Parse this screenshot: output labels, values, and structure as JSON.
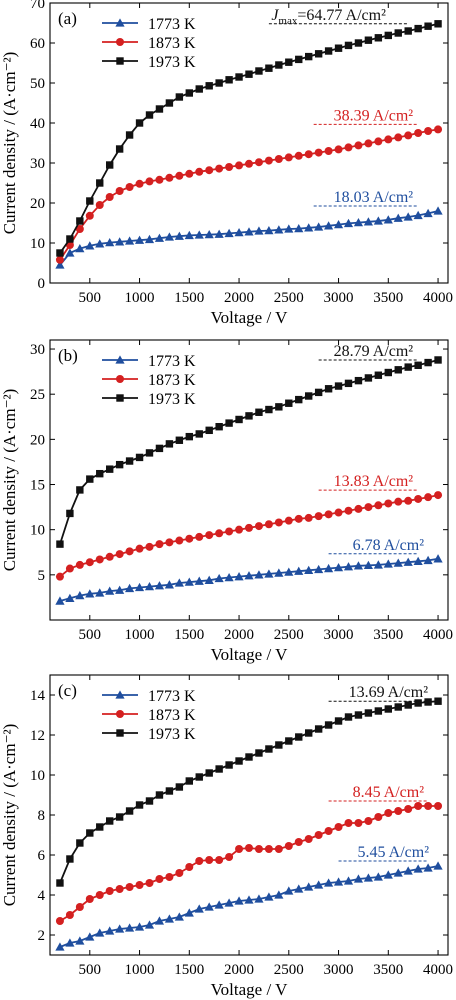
{
  "chart_data": [
    {
      "type": "line",
      "panel_label": "(a)",
      "xlabel": "Voltage / V",
      "ylabel": "Current density / (A·cm⁻²)",
      "xlim": [
        100,
        4100
      ],
      "ylim": [
        0,
        70
      ],
      "xticks": [
        500,
        1000,
        1500,
        2000,
        2500,
        3000,
        3500,
        4000
      ],
      "yticks": [
        0,
        10,
        20,
        30,
        40,
        50,
        60,
        70
      ],
      "legend_position": "top-left",
      "x": [
        200,
        300,
        400,
        500,
        600,
        700,
        800,
        900,
        1000,
        1100,
        1200,
        1300,
        1400,
        1500,
        1600,
        1700,
        1800,
        1900,
        2000,
        2100,
        2200,
        2300,
        2400,
        2500,
        2600,
        2700,
        2800,
        2900,
        3000,
        3100,
        3200,
        3300,
        3400,
        3500,
        3600,
        3700,
        3800,
        3900,
        4000
      ],
      "series": [
        {
          "name": "1773 K",
          "color": "#1f4e9e",
          "marker": "triangle",
          "values": [
            4.5,
            7.5,
            8.6,
            9.3,
            9.8,
            10.1,
            10.3,
            10.5,
            10.7,
            10.9,
            11.2,
            11.5,
            11.7,
            11.9,
            12.0,
            12.1,
            12.2,
            12.4,
            12.6,
            12.8,
            13.0,
            13.1,
            13.3,
            13.5,
            13.6,
            13.8,
            14.0,
            14.3,
            14.6,
            14.9,
            15.1,
            15.3,
            15.5,
            15.8,
            16.2,
            16.5,
            16.9,
            17.4,
            18.0
          ]
        },
        {
          "name": "1873 K",
          "color": "#d42020",
          "marker": "circle",
          "values": [
            5.8,
            9.5,
            13.5,
            16.8,
            19.5,
            21.5,
            23.0,
            24.0,
            24.8,
            25.4,
            25.8,
            26.3,
            26.8,
            27.3,
            27.8,
            28.2,
            28.6,
            29.0,
            29.4,
            29.8,
            30.2,
            30.6,
            31.0,
            31.4,
            31.8,
            32.2,
            32.6,
            33.0,
            33.4,
            33.9,
            34.4,
            34.9,
            35.4,
            35.9,
            36.4,
            36.9,
            37.5,
            38.0,
            38.4
          ]
        },
        {
          "name": "1973 K",
          "color": "#111111",
          "marker": "square",
          "values": [
            7.5,
            11.0,
            15.5,
            20.5,
            25.0,
            29.5,
            33.5,
            37.0,
            40.0,
            42.0,
            43.5,
            45.0,
            46.5,
            47.5,
            48.5,
            49.3,
            50.0,
            50.8,
            51.5,
            52.2,
            53.0,
            53.7,
            54.5,
            55.2,
            55.9,
            56.6,
            57.3,
            58.0,
            58.7,
            59.4,
            60.0,
            60.7,
            61.3,
            61.9,
            62.5,
            63.0,
            63.6,
            64.2,
            64.8
          ]
        }
      ],
      "annotations": [
        {
          "text_main": "J",
          "text_sub": "max",
          "text_rest": "=64.77 A/cm²",
          "color": "#111111",
          "anchor_x": 2900,
          "anchor_y": 64.8,
          "line_from": 2300,
          "line_to": 3700
        },
        {
          "text_main": "38.39 A/cm²",
          "text_sub": "",
          "text_rest": "",
          "color": "#d42020",
          "anchor_x": 3350,
          "anchor_y": 38.4,
          "line_from": 2750,
          "line_to": 3800
        },
        {
          "text_main": "18.03 A/cm²",
          "text_sub": "",
          "text_rest": "",
          "color": "#1f4e9e",
          "anchor_x": 3350,
          "anchor_y": 18.0,
          "line_from": 2750,
          "line_to": 3800
        }
      ]
    },
    {
      "type": "line",
      "panel_label": "(b)",
      "xlabel": "Voltage / V",
      "ylabel": "Current density / (A·cm⁻²)",
      "xlim": [
        100,
        4100
      ],
      "ylim": [
        0,
        31
      ],
      "xticks": [
        500,
        1000,
        1500,
        2000,
        2500,
        3000,
        3500,
        4000
      ],
      "yticks": [
        5,
        10,
        15,
        20,
        25,
        30
      ],
      "legend_position": "top-left",
      "x": [
        200,
        300,
        400,
        500,
        600,
        700,
        800,
        900,
        1000,
        1100,
        1200,
        1300,
        1400,
        1500,
        1600,
        1700,
        1800,
        1900,
        2000,
        2100,
        2200,
        2300,
        2400,
        2500,
        2600,
        2700,
        2800,
        2900,
        3000,
        3100,
        3200,
        3300,
        3400,
        3500,
        3600,
        3700,
        3800,
        3900,
        4000
      ],
      "series": [
        {
          "name": "1773 K",
          "color": "#1f4e9e",
          "marker": "triangle",
          "values": [
            2.1,
            2.4,
            2.7,
            2.9,
            3.0,
            3.2,
            3.3,
            3.5,
            3.6,
            3.7,
            3.8,
            3.9,
            4.1,
            4.2,
            4.3,
            4.4,
            4.6,
            4.7,
            4.8,
            4.9,
            5.0,
            5.1,
            5.2,
            5.3,
            5.4,
            5.5,
            5.6,
            5.7,
            5.8,
            5.9,
            6.0,
            6.05,
            6.1,
            6.2,
            6.3,
            6.4,
            6.5,
            6.6,
            6.78
          ]
        },
        {
          "name": "1873 K",
          "color": "#d42020",
          "marker": "circle",
          "values": [
            4.8,
            5.7,
            6.1,
            6.4,
            6.7,
            7.0,
            7.3,
            7.6,
            7.9,
            8.1,
            8.4,
            8.6,
            8.8,
            9.0,
            9.2,
            9.4,
            9.6,
            9.8,
            10.0,
            10.2,
            10.4,
            10.6,
            10.8,
            11.0,
            11.2,
            11.3,
            11.5,
            11.7,
            11.9,
            12.1,
            12.3,
            12.5,
            12.7,
            12.9,
            13.1,
            13.2,
            13.4,
            13.6,
            13.83
          ]
        },
        {
          "name": "1973 K",
          "color": "#111111",
          "marker": "square",
          "values": [
            8.4,
            11.8,
            14.4,
            15.6,
            16.2,
            16.7,
            17.2,
            17.6,
            18.0,
            18.5,
            19.0,
            19.5,
            19.9,
            20.3,
            20.6,
            21.0,
            21.4,
            21.8,
            22.2,
            22.6,
            23.0,
            23.3,
            23.6,
            24.0,
            24.4,
            24.8,
            25.2,
            25.6,
            25.9,
            26.2,
            26.5,
            26.8,
            27.1,
            27.4,
            27.7,
            28.0,
            28.2,
            28.5,
            28.79
          ]
        }
      ],
      "annotations": [
        {
          "text_main": "28.79 A/cm²",
          "text_sub": "",
          "text_rest": "",
          "color": "#111111",
          "anchor_x": 3350,
          "anchor_y": 28.79,
          "line_from": 2800,
          "line_to": 3800
        },
        {
          "text_main": "13.83 A/cm²",
          "text_sub": "",
          "text_rest": "",
          "color": "#d42020",
          "anchor_x": 3350,
          "anchor_y": 13.83,
          "line_from": 2800,
          "line_to": 3800
        },
        {
          "text_main": "6.78 A/cm²",
          "text_sub": "",
          "text_rest": "",
          "color": "#1f4e9e",
          "anchor_x": 3500,
          "anchor_y": 6.78,
          "line_from": 2900,
          "line_to": 3800
        }
      ]
    },
    {
      "type": "line",
      "panel_label": "(c)",
      "xlabel": "Voltage / V",
      "ylabel": "Current density / (A·cm⁻²)",
      "xlim": [
        100,
        4100
      ],
      "ylim": [
        1,
        15
      ],
      "xticks": [
        500,
        1000,
        1500,
        2000,
        2500,
        3000,
        3500,
        4000
      ],
      "yticks": [
        2,
        4,
        6,
        8,
        10,
        12,
        14
      ],
      "legend_position": "top-left",
      "x": [
        200,
        300,
        400,
        500,
        600,
        700,
        800,
        900,
        1000,
        1100,
        1200,
        1300,
        1400,
        1500,
        1600,
        1700,
        1800,
        1900,
        2000,
        2100,
        2200,
        2300,
        2400,
        2500,
        2600,
        2700,
        2800,
        2900,
        3000,
        3100,
        3200,
        3300,
        3400,
        3500,
        3600,
        3700,
        3800,
        3900,
        4000
      ],
      "series": [
        {
          "name": "1773 K",
          "color": "#1f4e9e",
          "marker": "triangle",
          "values": [
            1.4,
            1.6,
            1.7,
            1.9,
            2.1,
            2.2,
            2.3,
            2.35,
            2.4,
            2.5,
            2.7,
            2.8,
            2.9,
            3.1,
            3.3,
            3.4,
            3.5,
            3.6,
            3.7,
            3.75,
            3.8,
            3.9,
            4.0,
            4.2,
            4.3,
            4.4,
            4.5,
            4.6,
            4.65,
            4.7,
            4.8,
            4.85,
            4.9,
            5.0,
            5.1,
            5.2,
            5.3,
            5.35,
            5.45
          ]
        },
        {
          "name": "1873 K",
          "color": "#d42020",
          "marker": "circle",
          "values": [
            2.7,
            3.0,
            3.4,
            3.8,
            4.0,
            4.2,
            4.3,
            4.4,
            4.5,
            4.6,
            4.8,
            4.9,
            5.1,
            5.4,
            5.7,
            5.75,
            5.75,
            5.9,
            6.3,
            6.35,
            6.3,
            6.3,
            6.3,
            6.45,
            6.65,
            6.8,
            7.0,
            7.2,
            7.4,
            7.6,
            7.6,
            7.7,
            7.9,
            8.1,
            8.2,
            8.3,
            8.45,
            8.45,
            8.45
          ]
        },
        {
          "name": "1973 K",
          "color": "#111111",
          "marker": "square",
          "values": [
            4.6,
            5.8,
            6.6,
            7.1,
            7.4,
            7.7,
            7.9,
            8.2,
            8.5,
            8.7,
            9.0,
            9.2,
            9.4,
            9.7,
            9.9,
            10.1,
            10.3,
            10.5,
            10.7,
            10.9,
            11.1,
            11.3,
            11.5,
            11.7,
            11.9,
            12.1,
            12.3,
            12.5,
            12.7,
            12.9,
            13.0,
            13.1,
            13.2,
            13.3,
            13.4,
            13.5,
            13.6,
            13.65,
            13.69
          ]
        }
      ],
      "annotations": [
        {
          "text_main": "13.69 A/cm²",
          "text_sub": "",
          "text_rest": "",
          "color": "#111111",
          "anchor_x": 3500,
          "anchor_y": 13.69,
          "line_from": 2900,
          "line_to": 3900
        },
        {
          "text_main": "8.45 A/cm²",
          "text_sub": "",
          "text_rest": "",
          "color": "#d42020",
          "anchor_x": 3500,
          "anchor_y": 8.45,
          "line_from": 2900,
          "line_to": 3900
        },
        {
          "text_main": "5.45 A/cm²",
          "text_sub": "",
          "text_rest": "",
          "color": "#1f4e9e",
          "anchor_x": 3550,
          "anchor_y": 5.45,
          "line_from": 3000,
          "line_to": 3900
        }
      ]
    }
  ]
}
